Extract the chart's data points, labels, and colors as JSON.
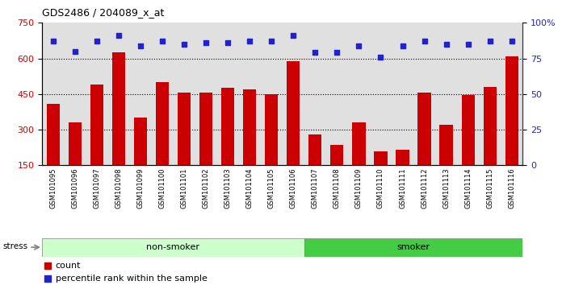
{
  "title": "GDS2486 / 204089_x_at",
  "categories": [
    "GSM101095",
    "GSM101096",
    "GSM101097",
    "GSM101098",
    "GSM101099",
    "GSM101100",
    "GSM101101",
    "GSM101102",
    "GSM101103",
    "GSM101104",
    "GSM101105",
    "GSM101106",
    "GSM101107",
    "GSM101108",
    "GSM101109",
    "GSM101110",
    "GSM101111",
    "GSM101112",
    "GSM101113",
    "GSM101114",
    "GSM101115",
    "GSM101116"
  ],
  "bar_values": [
    410,
    330,
    490,
    625,
    350,
    500,
    455,
    455,
    475,
    470,
    450,
    590,
    280,
    235,
    330,
    210,
    215,
    455,
    320,
    445,
    480,
    610
  ],
  "dot_values": [
    87,
    80,
    87,
    91,
    84,
    87,
    85,
    86,
    86,
    87,
    87,
    91,
    79,
    79,
    84,
    76,
    84,
    87,
    85,
    85,
    87,
    87
  ],
  "bar_color": "#cc0000",
  "dot_color": "#2222cc",
  "non_smoker_count": 12,
  "smoker_count": 10,
  "non_smoker_color": "#ccffcc",
  "smoker_color": "#44cc44",
  "non_smoker_label": "non-smoker",
  "smoker_label": "smoker",
  "stress_label": "stress",
  "ylim_left": [
    150,
    750
  ],
  "yticks_left": [
    150,
    300,
    450,
    600,
    750
  ],
  "ylim_right": [
    0,
    100
  ],
  "yticks_right": [
    0,
    25,
    50,
    75,
    100
  ],
  "ytick_right_labels": [
    "0",
    "25",
    "50",
    "75",
    "100%"
  ],
  "hlines": [
    300,
    450,
    600
  ],
  "legend_count_label": "count",
  "legend_pct_label": "percentile rank within the sample",
  "background_color": "#e0e0e0"
}
